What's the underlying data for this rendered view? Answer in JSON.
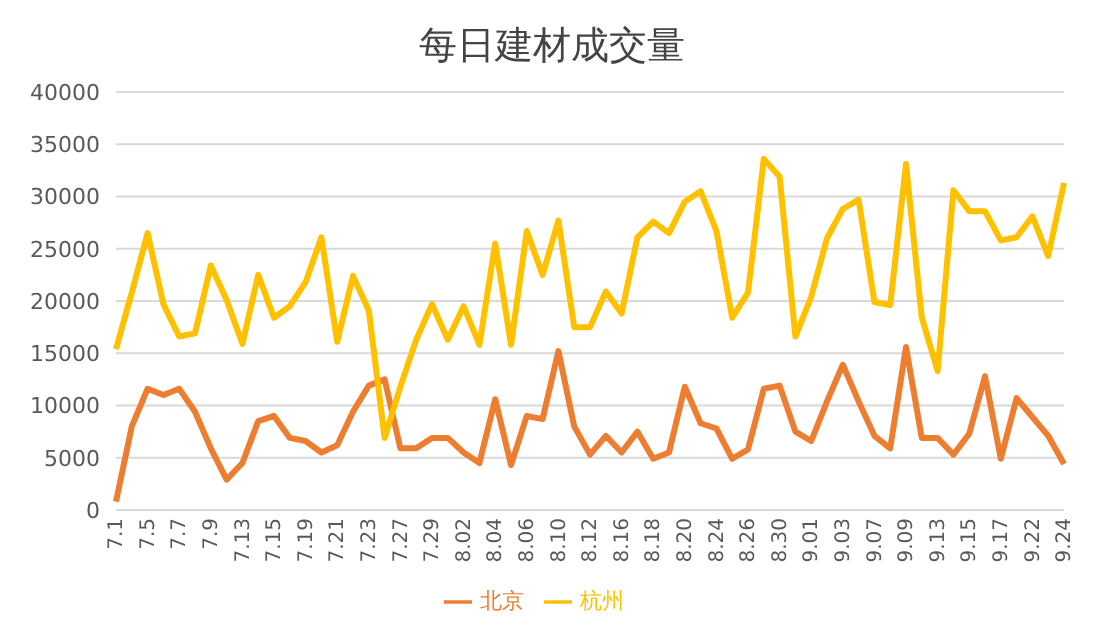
{
  "chart_data": {
    "type": "line",
    "title": "每日建材成交量",
    "categories": [
      "7.1",
      null,
      "7.5",
      null,
      "7.7",
      null,
      "7.9",
      null,
      "7.13",
      null,
      "7.15",
      null,
      "7.19",
      null,
      "7.21",
      null,
      "7.23",
      null,
      "7.27",
      null,
      "7.29",
      null,
      "8.02",
      null,
      "8.04",
      null,
      "8.06",
      null,
      "8.10",
      null,
      "8.12",
      null,
      "8.16",
      null,
      "8.18",
      null,
      "8.20",
      null,
      "8.24",
      null,
      "8.26",
      null,
      "8.30",
      null,
      "9.01",
      null,
      "9.03",
      null,
      "9.07",
      null,
      "9.09",
      null,
      "9.13",
      null,
      "9.15",
      null,
      "9.17",
      null,
      "9.22",
      null,
      "9.24"
    ],
    "series": [
      {
        "name": "北京",
        "color": "#ed7d31",
        "values": [
          800,
          8000,
          11600,
          11000,
          11600,
          9400,
          5900,
          2900,
          4500,
          8500,
          9000,
          6900,
          6600,
          5500,
          6200,
          9400,
          11900,
          12500,
          5900,
          5900,
          6900,
          6900,
          5500,
          4500,
          10600,
          4300,
          9000,
          8700,
          15200,
          8000,
          5300,
          7100,
          5500,
          7500,
          4900,
          5500,
          11800,
          8300,
          7800,
          4900,
          5800,
          11600,
          11900,
          7500,
          6600,
          10400,
          13900,
          10400,
          7100,
          5900,
          15600,
          6900,
          6900,
          5300,
          7300,
          12800,
          4900,
          10700,
          8900,
          7100,
          4400
        ]
      },
      {
        "name": "杭州",
        "color": "#ffc000",
        "values": [
          15400,
          20800,
          26500,
          19700,
          16600,
          16900,
          23400,
          20100,
          15900,
          22500,
          18400,
          19500,
          21800,
          26100,
          16100,
          22400,
          19100,
          6900,
          11800,
          16300,
          19700,
          16300,
          19500,
          15800,
          25500,
          15800,
          26700,
          22500,
          27700,
          17500,
          17500,
          20900,
          18800,
          26100,
          27600,
          26500,
          29500,
          30500,
          26700,
          18400,
          20800,
          33600,
          31900,
          16600,
          20400,
          26000,
          28800,
          29700,
          19900,
          19600,
          33100,
          18400,
          13300,
          30600,
          28600,
          28600,
          25800,
          26100,
          28100,
          24300,
          31300
        ]
      }
    ],
    "ylim": [
      0,
      40000
    ],
    "yticks": [
      0,
      5000,
      10000,
      15000,
      20000,
      25000,
      30000,
      35000,
      40000
    ],
    "grid": "y",
    "legend": "bottom",
    "marker": "none",
    "line_style": "solid"
  }
}
